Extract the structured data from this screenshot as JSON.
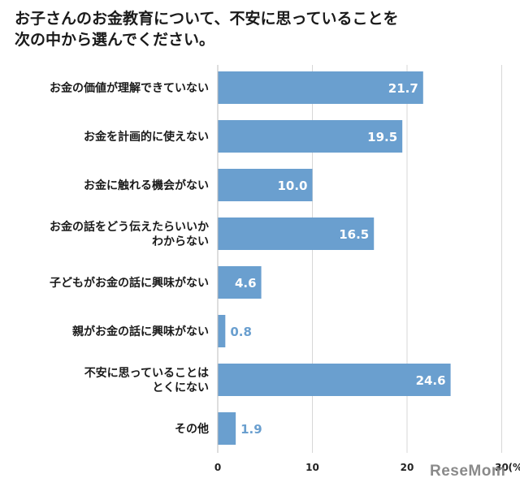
{
  "header": {
    "title_line1": "お子さんのお金教育について、不安に思っていることを",
    "title_line2": "次の中から選んでください。"
  },
  "chart_data": {
    "type": "bar",
    "orientation": "horizontal",
    "categories": [
      [
        "お金の価値が理解できていない"
      ],
      [
        "お金を計画的に使えない"
      ],
      [
        "お金に触れる機会がない"
      ],
      [
        "お金の話をどう伝えたらいいか",
        "わからない"
      ],
      [
        "子どもがお金の話に興味がない"
      ],
      [
        "親がお金の話に興味がない"
      ],
      [
        "不安に思っていることは",
        "とくにない"
      ],
      [
        "その他"
      ]
    ],
    "values": [
      21.7,
      19.5,
      10.0,
      16.5,
      4.6,
      0.8,
      24.6,
      1.9
    ],
    "value_labels": [
      "21.7",
      "19.5",
      "10.0",
      "16.5",
      "4.6",
      "0.8",
      "24.6",
      "1.9"
    ],
    "x_ticks": [
      "0",
      "10",
      "20",
      "30"
    ],
    "x_unit": "(%)",
    "xlim": [
      0,
      30
    ],
    "grid": true,
    "bar_color": "#6a9fcf",
    "label_inside_color": "#ffffff",
    "label_outside_color": "#6a9fcf"
  },
  "watermark": "ReseMom"
}
